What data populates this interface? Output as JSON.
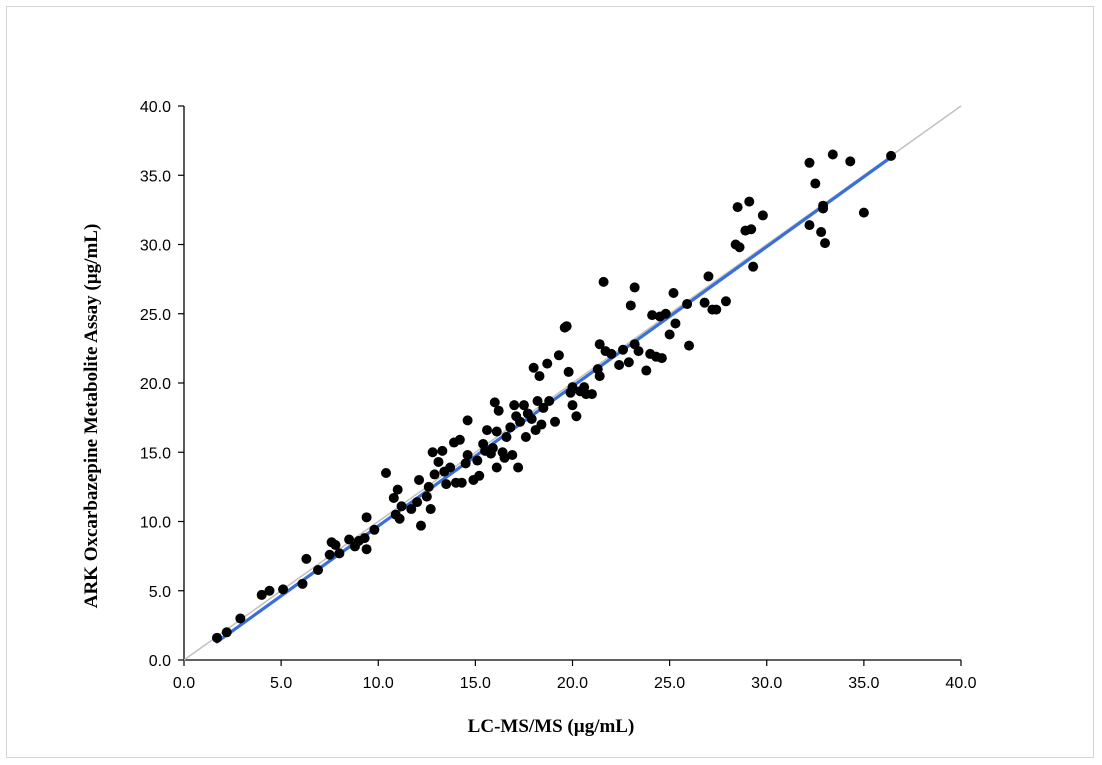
{
  "colors": {
    "points": "#000000",
    "regression_line": "#3a6fd8",
    "identity_line": "#c0c0c0",
    "axes": "#000000",
    "frame_border": "#d4d4d4"
  },
  "chart_data": {
    "type": "scatter",
    "title": "",
    "xlabel": "LC-MS/MS (µg/mL)",
    "ylabel": "ARK Oxcarbazepine Metabolite Assay (µg/mL)",
    "xlim": [
      0,
      40
    ],
    "ylim": [
      0,
      40
    ],
    "xticks": [
      "0.0",
      "5.0",
      "10.0",
      "15.0",
      "20.0",
      "25.0",
      "30.0",
      "35.0",
      "40.0"
    ],
    "yticks": [
      "0.0",
      "5.0",
      "10.0",
      "15.0",
      "20.0",
      "25.0",
      "30.0",
      "35.0",
      "40.0"
    ],
    "grid": false,
    "legend": "none",
    "identity_line": {
      "x": [
        0,
        40
      ],
      "y": [
        0,
        40
      ]
    },
    "regression_line": {
      "x": [
        1.7,
        36.5
      ],
      "y": [
        1.3,
        36.4
      ]
    },
    "points": [
      [
        1.7,
        1.6
      ],
      [
        2.2,
        2.0
      ],
      [
        2.9,
        3.0
      ],
      [
        4.0,
        4.7
      ],
      [
        4.4,
        5.0
      ],
      [
        5.1,
        5.1
      ],
      [
        6.1,
        5.5
      ],
      [
        6.3,
        7.3
      ],
      [
        6.9,
        6.5
      ],
      [
        7.5,
        7.6
      ],
      [
        7.6,
        8.5
      ],
      [
        7.8,
        8.3
      ],
      [
        8.0,
        7.7
      ],
      [
        8.5,
        8.7
      ],
      [
        8.8,
        8.2
      ],
      [
        9.0,
        8.6
      ],
      [
        9.3,
        8.8
      ],
      [
        9.4,
        10.3
      ],
      [
        9.4,
        8.0
      ],
      [
        9.8,
        9.4
      ],
      [
        10.4,
        13.5
      ],
      [
        10.8,
        11.7
      ],
      [
        10.9,
        10.5
      ],
      [
        11.0,
        12.3
      ],
      [
        11.1,
        10.2
      ],
      [
        11.2,
        11.1
      ],
      [
        11.7,
        10.9
      ],
      [
        12.0,
        11.4
      ],
      [
        12.1,
        13.0
      ],
      [
        12.2,
        9.7
      ],
      [
        12.5,
        11.8
      ],
      [
        12.6,
        12.5
      ],
      [
        12.7,
        10.9
      ],
      [
        12.8,
        15.0
      ],
      [
        12.9,
        13.4
      ],
      [
        13.1,
        14.3
      ],
      [
        13.3,
        15.1
      ],
      [
        13.4,
        13.6
      ],
      [
        13.5,
        12.7
      ],
      [
        13.7,
        13.9
      ],
      [
        13.9,
        15.7
      ],
      [
        14.0,
        12.8
      ],
      [
        14.2,
        15.9
      ],
      [
        14.3,
        12.8
      ],
      [
        14.5,
        14.2
      ],
      [
        14.6,
        17.3
      ],
      [
        14.6,
        14.8
      ],
      [
        14.9,
        13.0
      ],
      [
        15.1,
        14.4
      ],
      [
        15.2,
        13.3
      ],
      [
        15.4,
        15.6
      ],
      [
        15.5,
        15.1
      ],
      [
        15.6,
        16.6
      ],
      [
        15.8,
        14.9
      ],
      [
        15.9,
        15.3
      ],
      [
        16.0,
        18.6
      ],
      [
        16.1,
        16.5
      ],
      [
        16.2,
        18.0
      ],
      [
        16.1,
        13.9
      ],
      [
        16.4,
        15.0
      ],
      [
        16.5,
        14.6
      ],
      [
        16.6,
        16.1
      ],
      [
        16.8,
        16.8
      ],
      [
        16.9,
        14.8
      ],
      [
        17.0,
        18.4
      ],
      [
        17.1,
        17.6
      ],
      [
        17.2,
        13.9
      ],
      [
        17.3,
        17.2
      ],
      [
        17.5,
        18.4
      ],
      [
        17.6,
        16.1
      ],
      [
        17.7,
        17.8
      ],
      [
        17.9,
        17.4
      ],
      [
        18.0,
        21.1
      ],
      [
        18.1,
        16.6
      ],
      [
        18.2,
        18.7
      ],
      [
        18.3,
        20.5
      ],
      [
        18.4,
        17.0
      ],
      [
        18.5,
        18.2
      ],
      [
        18.7,
        21.4
      ],
      [
        18.8,
        18.7
      ],
      [
        19.1,
        17.2
      ],
      [
        19.3,
        22.0
      ],
      [
        19.6,
        24.0
      ],
      [
        19.7,
        24.1
      ],
      [
        19.8,
        20.8
      ],
      [
        19.9,
        19.3
      ],
      [
        20.0,
        19.7
      ],
      [
        20.0,
        18.4
      ],
      [
        20.2,
        17.6
      ],
      [
        20.4,
        19.4
      ],
      [
        20.6,
        19.7
      ],
      [
        20.7,
        19.2
      ],
      [
        21.0,
        19.2
      ],
      [
        21.3,
        21.0
      ],
      [
        21.4,
        20.5
      ],
      [
        21.4,
        22.8
      ],
      [
        21.6,
        27.3
      ],
      [
        21.7,
        22.3
      ],
      [
        22.0,
        22.1
      ],
      [
        22.4,
        21.3
      ],
      [
        22.6,
        22.4
      ],
      [
        22.9,
        21.5
      ],
      [
        23.0,
        25.6
      ],
      [
        23.2,
        22.8
      ],
      [
        23.4,
        22.3
      ],
      [
        23.2,
        26.9
      ],
      [
        23.8,
        20.9
      ],
      [
        24.0,
        22.1
      ],
      [
        24.1,
        24.9
      ],
      [
        24.3,
        21.9
      ],
      [
        24.5,
        24.8
      ],
      [
        24.6,
        21.8
      ],
      [
        24.8,
        25.0
      ],
      [
        25.0,
        23.5
      ],
      [
        25.2,
        26.5
      ],
      [
        25.3,
        24.3
      ],
      [
        25.9,
        25.7
      ],
      [
        26.0,
        22.7
      ],
      [
        26.8,
        25.8
      ],
      [
        27.0,
        27.7
      ],
      [
        27.2,
        25.3
      ],
      [
        27.4,
        25.3
      ],
      [
        27.9,
        25.9
      ],
      [
        28.4,
        30.0
      ],
      [
        28.5,
        32.7
      ],
      [
        28.6,
        29.8
      ],
      [
        28.9,
        31.0
      ],
      [
        29.1,
        33.1
      ],
      [
        29.2,
        31.1
      ],
      [
        29.3,
        28.4
      ],
      [
        29.8,
        32.1
      ],
      [
        32.2,
        35.9
      ],
      [
        32.2,
        31.4
      ],
      [
        32.5,
        34.4
      ],
      [
        32.8,
        30.9
      ],
      [
        32.9,
        32.8
      ],
      [
        32.9,
        32.6
      ],
      [
        33.0,
        30.1
      ],
      [
        33.4,
        36.5
      ],
      [
        34.3,
        36.0
      ],
      [
        35.0,
        32.3
      ],
      [
        36.4,
        36.4
      ]
    ]
  }
}
